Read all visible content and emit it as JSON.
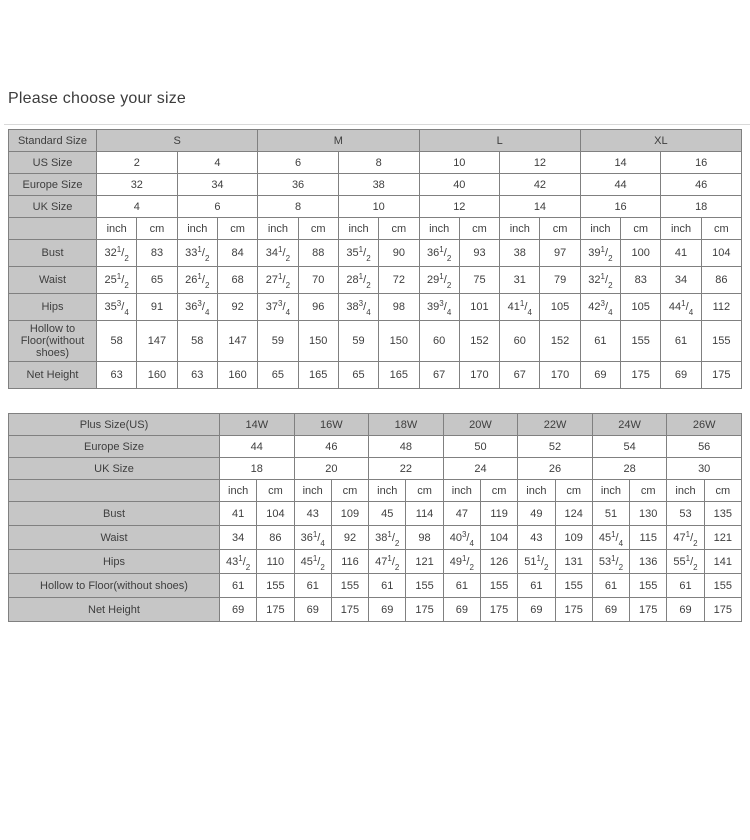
{
  "page": {
    "title": "Please choose your size"
  },
  "colors": {
    "header_bg": "#c6c6c6",
    "cell_bg": "#ffffff",
    "border": "#808080",
    "text": "#3e3e3e",
    "divider": "#d9d9d9",
    "page_bg": "#ffffff"
  },
  "tables": [
    {
      "id": "standard-size-table",
      "corner_label": "Standard Size",
      "label_col_width": 88,
      "groups": [
        "S",
        "M",
        "L",
        "XL"
      ],
      "group_span_pairs": 2,
      "units": [
        "inch",
        "cm"
      ],
      "pair_count": 8,
      "size_rows": [
        {
          "label": "US Size",
          "values": [
            "2",
            "4",
            "6",
            "8",
            "10",
            "12",
            "14",
            "16"
          ]
        },
        {
          "label": "Europe Size",
          "values": [
            "32",
            "34",
            "36",
            "38",
            "40",
            "42",
            "44",
            "46"
          ]
        },
        {
          "label": "UK Size",
          "values": [
            "4",
            "6",
            "8",
            "10",
            "12",
            "14",
            "16",
            "18"
          ]
        }
      ],
      "measure_rows": [
        {
          "label": "Bust",
          "values": [
            "32 1/2",
            "83",
            "33 1/2",
            "84",
            "34 1/2",
            "88",
            "35 1/2",
            "90",
            "36 1/2",
            "93",
            "38",
            "97",
            "39 1/2",
            "100",
            "41",
            "104"
          ]
        },
        {
          "label": "Waist",
          "values": [
            "25 1/2",
            "65",
            "26 1/2",
            "68",
            "27 1/2",
            "70",
            "28 1/2",
            "72",
            "29 1/2",
            "75",
            "31",
            "79",
            "32 1/2",
            "83",
            "34",
            "86"
          ]
        },
        {
          "label": "Hips",
          "values": [
            "35 3/4",
            "91",
            "36 3/4",
            "92",
            "37 3/4",
            "96",
            "38 3/4",
            "98",
            "39 3/4",
            "101",
            "41 1/4",
            "105",
            "42 3/4",
            "105",
            "44 1/4",
            "112"
          ]
        },
        {
          "label": "Hollow to Floor(without shoes)",
          "values": [
            "58",
            "147",
            "58",
            "147",
            "59",
            "150",
            "59",
            "150",
            "60",
            "152",
            "60",
            "152",
            "61",
            "155",
            "61",
            "155"
          ]
        },
        {
          "label": "Net Height",
          "values": [
            "63",
            "160",
            "63",
            "160",
            "65",
            "165",
            "65",
            "165",
            "67",
            "170",
            "67",
            "170",
            "69",
            "175",
            "69",
            "175"
          ]
        }
      ]
    },
    {
      "id": "plus-size-table",
      "corner_label": "Plus Size(US)",
      "label_col_width": 211,
      "groups": [
        "14W",
        "16W",
        "18W",
        "20W",
        "22W",
        "24W",
        "26W"
      ],
      "group_span_pairs": 1,
      "units": [
        "inch",
        "cm"
      ],
      "pair_count": 7,
      "size_rows": [
        {
          "label": "Europe Size",
          "values": [
            "44",
            "46",
            "48",
            "50",
            "52",
            "54",
            "56"
          ]
        },
        {
          "label": "UK Size",
          "values": [
            "18",
            "20",
            "22",
            "24",
            "26",
            "28",
            "30"
          ]
        }
      ],
      "measure_rows": [
        {
          "label": "Bust",
          "values": [
            "41",
            "104",
            "43",
            "109",
            "45",
            "114",
            "47",
            "119",
            "49",
            "124",
            "51",
            "130",
            "53",
            "135"
          ]
        },
        {
          "label": "Waist",
          "values": [
            "34",
            "86",
            "36 1/4",
            "92",
            "38 1/2",
            "98",
            "40 3/4",
            "104",
            "43",
            "109",
            "45 1/4",
            "115",
            "47 1/2",
            "121"
          ]
        },
        {
          "label": "Hips",
          "values": [
            "43 1/2",
            "110",
            "45 1/2",
            "116",
            "47 1/2",
            "121",
            "49 1/2",
            "126",
            "51 1/2",
            "131",
            "53 1/2",
            "136",
            "55 1/2",
            "141"
          ]
        },
        {
          "label": "Hollow to Floor(without shoes)",
          "values": [
            "61",
            "155",
            "61",
            "155",
            "61",
            "155",
            "61",
            "155",
            "61",
            "155",
            "61",
            "155",
            "61",
            "155"
          ]
        },
        {
          "label": "Net Height",
          "values": [
            "69",
            "175",
            "69",
            "175",
            "69",
            "175",
            "69",
            "175",
            "69",
            "175",
            "69",
            "175",
            "69",
            "175"
          ]
        }
      ]
    }
  ]
}
